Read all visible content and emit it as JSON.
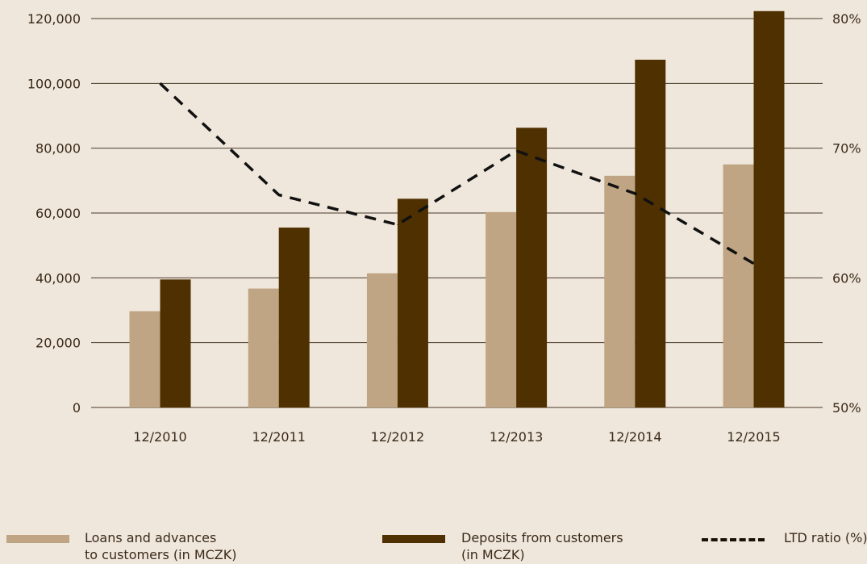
{
  "chart_data": {
    "type": "bar",
    "categories": [
      "12/2010",
      "12/2011",
      "12/2012",
      "12/2013",
      "12/2014",
      "12/2015"
    ],
    "series": [
      {
        "name": "Loans and advances\nto customers (in MCZK)",
        "kind": "bar",
        "axis": "left",
        "color": "#bfa583",
        "values": [
          29700,
          36700,
          41400,
          60300,
          71500,
          75000
        ]
      },
      {
        "name": "Deposits from customers\n(in MCZK)",
        "kind": "bar",
        "axis": "left",
        "color": "#4f3000",
        "values": [
          39500,
          55500,
          64400,
          86300,
          107300,
          122300
        ]
      },
      {
        "name": "LTD ratio (%)",
        "kind": "line",
        "axis": "right",
        "color": "#111111",
        "dashed": true,
        "values": [
          75,
          66.4,
          64.1,
          69.8,
          66.5,
          61.1
        ]
      }
    ],
    "y_left": {
      "ylim": [
        0,
        120000
      ],
      "ticks": [
        0,
        20000,
        40000,
        60000,
        80000,
        100000,
        120000
      ],
      "tick_labels": [
        "0",
        "20,000",
        "40,000",
        "60,000",
        "80,000",
        "100,000",
        "120,000"
      ]
    },
    "y_right": {
      "ylim": [
        50,
        80
      ],
      "ticks": [
        50,
        60,
        70,
        80
      ],
      "tick_labels": [
        "50%",
        "60%",
        "70%",
        "80%"
      ]
    },
    "grid": true,
    "legend_position": "bottom"
  }
}
